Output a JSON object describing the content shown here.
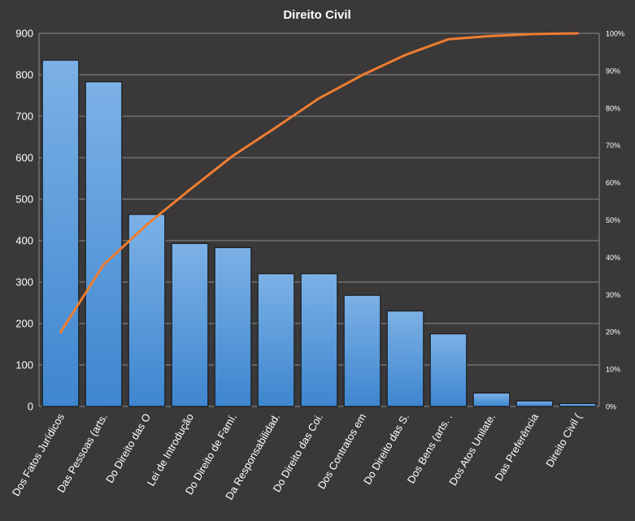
{
  "chart_data": {
    "type": "bar",
    "title": "Direito  Civil",
    "categories": [
      "Dos Fatos Jurídicos",
      "Das Pessoas (arts.",
      "Do Direito das O",
      "Lei de Introdução",
      "Do Direito de Famí.",
      "Da Responsabilidad.",
      "Do Direito das Coi.",
      "Dos Contratos em",
      "Do Direito das S.",
      "Dos Bens (arts. .",
      "Dos Atos Unilate.",
      "Das Preferência",
      "Direito Civil ("
    ],
    "series": [
      {
        "type": "bar",
        "axis": "left",
        "values": [
          835,
          783,
          463,
          393,
          383,
          320,
          320,
          268,
          230,
          175,
          32,
          13,
          7
        ]
      },
      {
        "type": "line",
        "axis": "right",
        "values": [
          19.9,
          38.0,
          48.7,
          58.1,
          67.2,
          74.8,
          82.6,
          88.8,
          94.2,
          98.4,
          99.3,
          99.8,
          100
        ]
      }
    ],
    "ylim": [
      0,
      900
    ],
    "yticks": [
      "0",
      "100",
      "200",
      "300",
      "400",
      "500",
      "600",
      "700",
      "800",
      "900"
    ],
    "y2lim": [
      0,
      100
    ],
    "y2ticks": [
      "0%",
      "10%",
      "20%",
      "30%",
      "40%",
      "50%",
      "60%",
      "70%",
      "80%",
      "90%",
      "100%"
    ],
    "grid": true,
    "colors": {
      "background": "#3a3838",
      "bar": "#5b9bd5",
      "line": "#ed7d31",
      "grid": "#8c8c8c"
    }
  }
}
